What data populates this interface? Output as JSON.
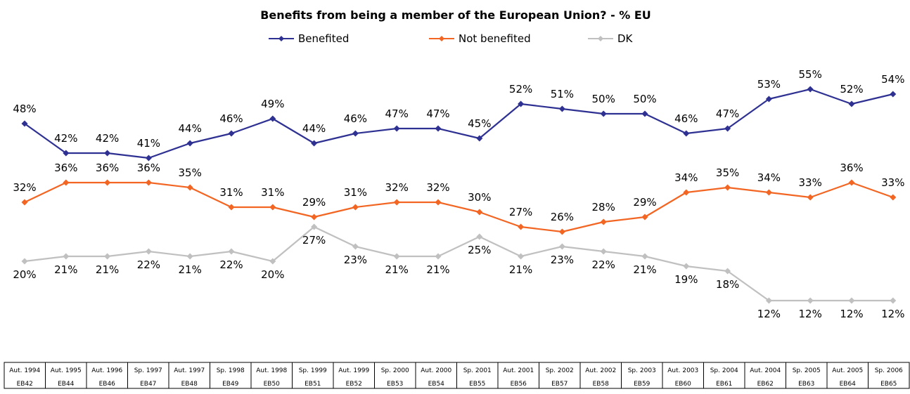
{
  "chart_data": {
    "type": "line",
    "title": "Benefits from being a member of the European Union? - % EU",
    "categories": [
      {
        "period": "Aut. 1994",
        "code": "EB42"
      },
      {
        "period": "Aut. 1995",
        "code": "EB44"
      },
      {
        "period": "Aut. 1996",
        "code": "EB46"
      },
      {
        "period": "Sp. 1997",
        "code": "EB47"
      },
      {
        "period": "Aut. 1997",
        "code": "EB48"
      },
      {
        "period": "Sp. 1998",
        "code": "EB49"
      },
      {
        "period": "Aut. 1998",
        "code": "EB50"
      },
      {
        "period": "Sp. 1999",
        "code": "EB51"
      },
      {
        "period": "Aut. 1999",
        "code": "EB52"
      },
      {
        "period": "Sp. 2000",
        "code": "EB53"
      },
      {
        "period": "Aut. 2000",
        "code": "EB54"
      },
      {
        "period": "Sp. 2001",
        "code": "EB55"
      },
      {
        "period": "Aut. 2001",
        "code": "EB56"
      },
      {
        "period": "Sp. 2002",
        "code": "EB57"
      },
      {
        "period": "Aut. 2002",
        "code": "EB58"
      },
      {
        "period": "Sp. 2003",
        "code": "EB59"
      },
      {
        "period": "Aut. 2003",
        "code": "EB60"
      },
      {
        "period": "Sp. 2004",
        "code": "EB61"
      },
      {
        "period": "Aut. 2004",
        "code": "EB62"
      },
      {
        "period": "Sp. 2005",
        "code": "EB63"
      },
      {
        "period": "Aut. 2005",
        "code": "EB64"
      },
      {
        "period": "Sp. 2006",
        "code": "EB65"
      }
    ],
    "series": [
      {
        "name": "Benefited",
        "color": "#2e3192",
        "marker": "diamond",
        "values": [
          48,
          42,
          42,
          41,
          44,
          46,
          49,
          44,
          46,
          47,
          47,
          45,
          52,
          51,
          50,
          50,
          46,
          47,
          53,
          55,
          52,
          54
        ]
      },
      {
        "name": "Not benefited",
        "color": "#f26522",
        "marker": "diamond",
        "values": [
          32,
          36,
          36,
          36,
          35,
          31,
          31,
          29,
          31,
          32,
          32,
          30,
          27,
          26,
          28,
          29,
          34,
          35,
          34,
          33,
          36,
          33
        ]
      },
      {
        "name": "DK",
        "color": "#c0c0c0",
        "marker": "diamond",
        "values": [
          20,
          21,
          21,
          22,
          21,
          22,
          20,
          27,
          23,
          21,
          21,
          25,
          21,
          23,
          22,
          21,
          19,
          18,
          12,
          12,
          12,
          12
        ]
      }
    ],
    "value_suffix": "%",
    "legend_position": "top-center",
    "grid": false
  }
}
